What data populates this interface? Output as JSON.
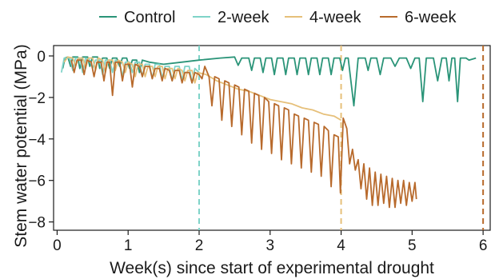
{
  "chart_data": {
    "type": "line",
    "xlabel": "Week(s) since start of experimental drought",
    "ylabel": "Stem water potential (MPa)",
    "xlim": [
      -0.05,
      6.1
    ],
    "ylim": [
      -8.4,
      0.5
    ],
    "x_ticks": [
      0,
      1,
      2,
      3,
      4,
      5,
      6
    ],
    "y_ticks": [
      0,
      -2,
      -4,
      -6,
      -8
    ],
    "grid": false,
    "legend_position": "top",
    "series": [
      {
        "name": "Control",
        "color": "#2a9478",
        "points": [
          [
            0.08,
            -0.6
          ],
          [
            0.11,
            -0.1
          ],
          [
            0.15,
            -0.05
          ],
          [
            0.19,
            -0.5
          ],
          [
            0.22,
            -0.05
          ],
          [
            0.29,
            -0.05
          ],
          [
            0.32,
            -0.6
          ],
          [
            0.36,
            -0.05
          ],
          [
            0.43,
            -0.05
          ],
          [
            0.46,
            -0.5
          ],
          [
            0.5,
            -0.05
          ],
          [
            0.57,
            -0.05
          ],
          [
            0.6,
            -0.6
          ],
          [
            0.64,
            -0.1
          ],
          [
            0.7,
            -0.1
          ],
          [
            0.74,
            -0.6
          ],
          [
            0.78,
            -0.1
          ],
          [
            0.84,
            -0.1
          ],
          [
            0.88,
            -0.5
          ],
          [
            0.92,
            -0.1
          ],
          [
            0.98,
            -0.1
          ],
          [
            1.02,
            -0.6
          ],
          [
            1.06,
            -0.2
          ],
          [
            1.12,
            -0.2
          ],
          [
            1.16,
            -0.8
          ],
          [
            1.2,
            -0.2
          ],
          [
            1.3,
            -0.3
          ],
          [
            1.5,
            -0.4
          ],
          [
            1.75,
            -0.3
          ],
          [
            2.0,
            -0.2
          ],
          [
            2.3,
            -0.1
          ],
          [
            2.5,
            -0.05
          ],
          [
            2.55,
            -0.45
          ],
          [
            2.6,
            -0.1
          ],
          [
            2.7,
            -0.1
          ],
          [
            2.74,
            -0.7
          ],
          [
            2.78,
            -0.1
          ],
          [
            2.86,
            -0.1
          ],
          [
            2.9,
            -0.8
          ],
          [
            2.94,
            -0.1
          ],
          [
            3.02,
            -0.1
          ],
          [
            3.06,
            -0.9
          ],
          [
            3.1,
            -0.1
          ],
          [
            3.18,
            -0.1
          ],
          [
            3.22,
            -0.9
          ],
          [
            3.26,
            -0.1
          ],
          [
            3.34,
            -0.1
          ],
          [
            3.38,
            -0.9
          ],
          [
            3.42,
            -0.1
          ],
          [
            3.5,
            -0.1
          ],
          [
            3.54,
            -0.9
          ],
          [
            3.58,
            -0.1
          ],
          [
            3.66,
            -0.1
          ],
          [
            3.7,
            -0.9
          ],
          [
            3.74,
            -0.1
          ],
          [
            3.82,
            -0.1
          ],
          [
            3.86,
            -0.9
          ],
          [
            3.9,
            -0.1
          ],
          [
            3.98,
            -0.1
          ],
          [
            4.02,
            -0.7
          ],
          [
            4.06,
            -0.1
          ],
          [
            4.1,
            -0.1
          ],
          [
            4.18,
            -2.4
          ],
          [
            4.24,
            -0.1
          ],
          [
            4.34,
            -0.1
          ],
          [
            4.38,
            -0.7
          ],
          [
            4.42,
            -0.1
          ],
          [
            4.5,
            -0.1
          ],
          [
            4.55,
            -0.9
          ],
          [
            4.6,
            -0.1
          ],
          [
            4.7,
            -0.1
          ],
          [
            4.76,
            -0.5
          ],
          [
            4.82,
            -0.1
          ],
          [
            4.92,
            -0.1
          ],
          [
            4.98,
            -0.6
          ],
          [
            5.04,
            -0.1
          ],
          [
            5.1,
            -0.1
          ],
          [
            5.15,
            -2.2
          ],
          [
            5.2,
            -0.1
          ],
          [
            5.3,
            -0.1
          ],
          [
            5.36,
            -1.2
          ],
          [
            5.42,
            -0.1
          ],
          [
            5.48,
            -0.1
          ],
          [
            5.52,
            -1.2
          ],
          [
            5.56,
            -0.1
          ],
          [
            5.6,
            -0.1
          ],
          [
            5.64,
            -2.2
          ],
          [
            5.68,
            -0.1
          ],
          [
            5.76,
            -0.1
          ],
          [
            5.8,
            -0.2
          ],
          [
            5.9,
            -0.1
          ]
        ]
      },
      {
        "name": "2-week",
        "color": "#7fd3c8",
        "points": [
          [
            0.06,
            -0.8
          ],
          [
            0.1,
            -0.1
          ],
          [
            0.18,
            -0.1
          ],
          [
            0.22,
            -0.7
          ],
          [
            0.26,
            -0.1
          ],
          [
            0.32,
            -0.1
          ],
          [
            0.36,
            -0.8
          ],
          [
            0.4,
            -0.1
          ],
          [
            0.46,
            -0.2
          ],
          [
            0.5,
            -0.6
          ],
          [
            0.54,
            -0.2
          ],
          [
            0.6,
            -0.2
          ],
          [
            0.64,
            -0.9
          ],
          [
            0.68,
            -0.2
          ],
          [
            0.74,
            -0.2
          ],
          [
            0.78,
            -0.8
          ],
          [
            0.82,
            -0.2
          ],
          [
            0.88,
            -0.3
          ],
          [
            0.92,
            -1.0
          ],
          [
            0.96,
            -0.3
          ],
          [
            1.02,
            -0.3
          ],
          [
            1.06,
            -0.8
          ],
          [
            1.1,
            -0.3
          ],
          [
            1.16,
            -0.3
          ],
          [
            1.2,
            -1.0
          ],
          [
            1.24,
            -0.4
          ],
          [
            1.3,
            -0.4
          ],
          [
            1.34,
            -1.1
          ],
          [
            1.38,
            -0.4
          ],
          [
            1.44,
            -0.4
          ],
          [
            1.48,
            -1.1
          ],
          [
            1.52,
            -0.5
          ],
          [
            1.58,
            -0.5
          ],
          [
            1.62,
            -1.2
          ],
          [
            1.66,
            -0.5
          ],
          [
            1.72,
            -0.5
          ],
          [
            1.76,
            -1.2
          ],
          [
            1.8,
            -0.5
          ],
          [
            1.86,
            -0.5
          ],
          [
            1.9,
            -1.3
          ],
          [
            1.94,
            -0.6
          ],
          [
            2.0,
            -0.8
          ]
        ]
      },
      {
        "name": "4-week",
        "color": "#e6c07a",
        "points": [
          [
            0.1,
            -0.3
          ],
          [
            0.15,
            -0.05
          ],
          [
            0.22,
            -0.1
          ],
          [
            0.26,
            -0.5
          ],
          [
            0.3,
            -0.1
          ],
          [
            0.36,
            -0.1
          ],
          [
            0.4,
            -0.6
          ],
          [
            0.44,
            -0.1
          ],
          [
            0.5,
            -0.1
          ],
          [
            0.54,
            -0.7
          ],
          [
            0.58,
            -0.1
          ],
          [
            0.64,
            -0.2
          ],
          [
            0.68,
            -0.8
          ],
          [
            0.72,
            -0.2
          ],
          [
            0.78,
            -0.2
          ],
          [
            0.82,
            -0.7
          ],
          [
            0.86,
            -0.2
          ],
          [
            0.92,
            -0.3
          ],
          [
            0.96,
            -0.8
          ],
          [
            1.0,
            -0.3
          ],
          [
            1.06,
            -0.4
          ],
          [
            1.1,
            -1.0
          ],
          [
            1.14,
            -0.4
          ],
          [
            1.2,
            -0.4
          ],
          [
            1.24,
            -1.0
          ],
          [
            1.28,
            -0.5
          ],
          [
            1.34,
            -0.5
          ],
          [
            1.38,
            -1.0
          ],
          [
            1.42,
            -0.5
          ],
          [
            1.48,
            -0.5
          ],
          [
            1.52,
            -1.1
          ],
          [
            1.56,
            -0.6
          ],
          [
            1.62,
            -0.6
          ],
          [
            1.66,
            -1.1
          ],
          [
            1.7,
            -0.6
          ],
          [
            1.76,
            -0.7
          ],
          [
            1.8,
            -1.2
          ],
          [
            1.84,
            -0.7
          ],
          [
            1.9,
            -0.7
          ],
          [
            1.94,
            -1.3
          ],
          [
            1.98,
            -0.8
          ],
          [
            2.1,
            -0.9
          ],
          [
            2.25,
            -1.2
          ],
          [
            2.4,
            -1.4
          ],
          [
            2.55,
            -1.6
          ],
          [
            2.7,
            -1.7
          ],
          [
            2.85,
            -1.9
          ],
          [
            3.0,
            -2.1
          ],
          [
            3.15,
            -2.2
          ],
          [
            3.3,
            -2.3
          ],
          [
            3.45,
            -2.5
          ],
          [
            3.6,
            -2.6
          ],
          [
            3.75,
            -2.8
          ],
          [
            3.9,
            -2.9
          ],
          [
            4.0,
            -3.1
          ]
        ]
      },
      {
        "name": "6-week",
        "color": "#b86a2c",
        "points": [
          [
            0.2,
            -0.2
          ],
          [
            0.24,
            -0.8
          ],
          [
            0.28,
            -0.2
          ],
          [
            0.34,
            -0.2
          ],
          [
            0.38,
            -0.9
          ],
          [
            0.42,
            -0.2
          ],
          [
            0.48,
            -0.3
          ],
          [
            0.52,
            -1.0
          ],
          [
            0.56,
            -0.3
          ],
          [
            0.62,
            -0.3
          ],
          [
            0.66,
            -1.2
          ],
          [
            0.7,
            -0.3
          ],
          [
            0.74,
            -0.3
          ],
          [
            0.78,
            -1.9
          ],
          [
            0.82,
            -0.3
          ],
          [
            0.88,
            -0.3
          ],
          [
            0.92,
            -1.2
          ],
          [
            0.96,
            -0.4
          ],
          [
            1.02,
            -0.4
          ],
          [
            1.06,
            -1.5
          ],
          [
            1.1,
            -0.4
          ],
          [
            1.16,
            -0.5
          ],
          [
            1.2,
            -1.0
          ],
          [
            1.24,
            -0.5
          ],
          [
            1.3,
            -0.5
          ],
          [
            1.34,
            -1.1
          ],
          [
            1.38,
            -0.6
          ],
          [
            1.44,
            -0.6
          ],
          [
            1.48,
            -1.2
          ],
          [
            1.52,
            -0.6
          ],
          [
            1.58,
            -0.7
          ],
          [
            1.62,
            -1.2
          ],
          [
            1.66,
            -0.7
          ],
          [
            1.72,
            -0.7
          ],
          [
            1.76,
            -1.3
          ],
          [
            1.8,
            -0.8
          ],
          [
            1.86,
            -0.8
          ],
          [
            1.9,
            -1.3
          ],
          [
            1.94,
            -0.8
          ],
          [
            2.0,
            -0.9
          ],
          [
            2.04,
            -1.1
          ],
          [
            2.08,
            -0.5
          ],
          [
            2.14,
            -1.0
          ],
          [
            2.18,
            -2.4
          ],
          [
            2.22,
            -1.0
          ],
          [
            2.28,
            -1.1
          ],
          [
            2.32,
            -3.1
          ],
          [
            2.36,
            -1.2
          ],
          [
            2.42,
            -1.3
          ],
          [
            2.46,
            -3.4
          ],
          [
            2.5,
            -1.4
          ],
          [
            2.56,
            -1.5
          ],
          [
            2.6,
            -3.8
          ],
          [
            2.64,
            -1.6
          ],
          [
            2.7,
            -1.7
          ],
          [
            2.74,
            -4.2
          ],
          [
            2.78,
            -1.8
          ],
          [
            2.84,
            -1.9
          ],
          [
            2.88,
            -4.5
          ],
          [
            2.92,
            -2.0
          ],
          [
            2.98,
            -2.2
          ],
          [
            3.02,
            -4.7
          ],
          [
            3.06,
            -2.3
          ],
          [
            3.12,
            -2.4
          ],
          [
            3.16,
            -5.0
          ],
          [
            3.2,
            -2.5
          ],
          [
            3.26,
            -2.6
          ],
          [
            3.3,
            -5.2
          ],
          [
            3.34,
            -2.8
          ],
          [
            3.4,
            -2.9
          ],
          [
            3.44,
            -5.4
          ],
          [
            3.48,
            -3.0
          ],
          [
            3.54,
            -3.1
          ],
          [
            3.58,
            -5.6
          ],
          [
            3.62,
            -3.2
          ],
          [
            3.68,
            -3.3
          ],
          [
            3.72,
            -5.8
          ],
          [
            3.76,
            -3.4
          ],
          [
            3.82,
            -3.6
          ],
          [
            3.86,
            -6.3
          ],
          [
            3.9,
            -3.8
          ],
          [
            3.96,
            -3.9
          ],
          [
            3.99,
            -6.6
          ],
          [
            4.03,
            -3.0
          ],
          [
            4.08,
            -3.5
          ],
          [
            4.12,
            -5.2
          ],
          [
            4.16,
            -4.5
          ],
          [
            4.2,
            -5.5
          ],
          [
            4.24,
            -5.0
          ],
          [
            4.28,
            -6.4
          ],
          [
            4.32,
            -5.2
          ],
          [
            4.36,
            -6.9
          ],
          [
            4.4,
            -5.4
          ],
          [
            4.44,
            -7.2
          ],
          [
            4.48,
            -5.6
          ],
          [
            4.52,
            -7.2
          ],
          [
            4.56,
            -5.7
          ],
          [
            4.6,
            -7.1
          ],
          [
            4.64,
            -5.8
          ],
          [
            4.68,
            -7.3
          ],
          [
            4.72,
            -5.9
          ],
          [
            4.76,
            -7.3
          ],
          [
            4.8,
            -6.0
          ],
          [
            4.84,
            -7.1
          ],
          [
            4.88,
            -6.0
          ],
          [
            4.92,
            -7.2
          ],
          [
            4.96,
            -6.1
          ],
          [
            5.0,
            -7.0
          ],
          [
            5.04,
            -6.1
          ],
          [
            5.06,
            -6.9
          ]
        ]
      }
    ],
    "reference_lines": [
      {
        "x": 2,
        "color": "#7fd3c8"
      },
      {
        "x": 4,
        "color": "#e6c07a"
      },
      {
        "x": 6,
        "color": "#b86a2c"
      }
    ]
  }
}
